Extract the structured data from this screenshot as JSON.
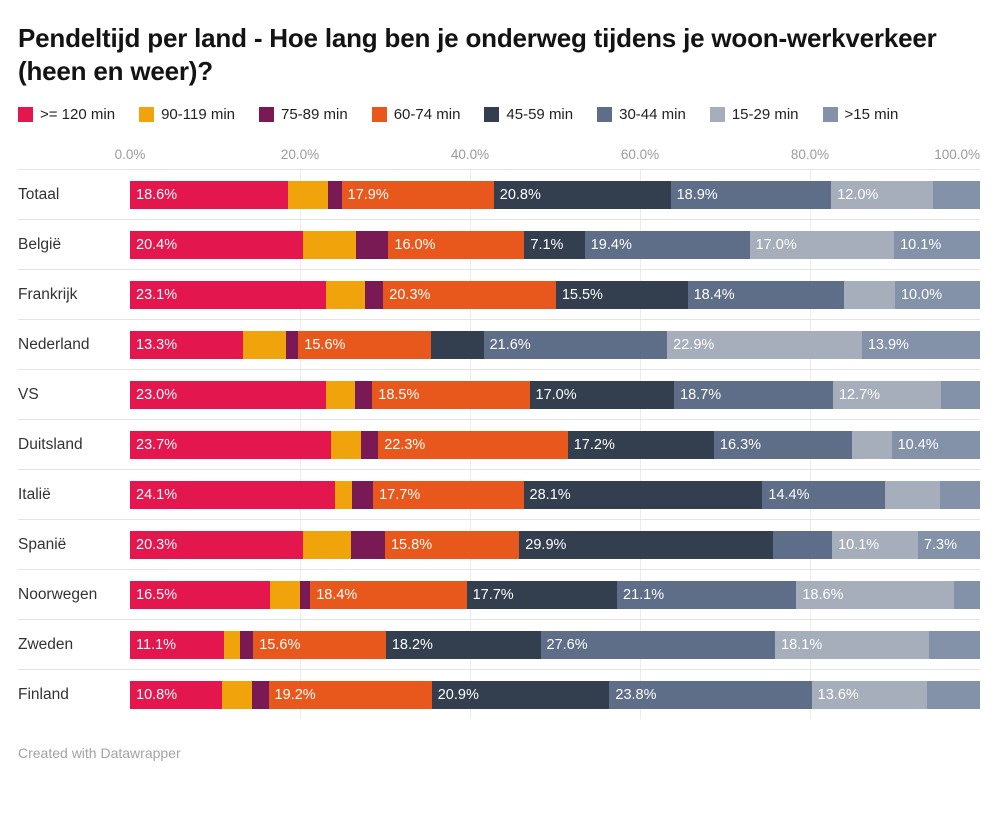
{
  "footer": {
    "attribution": "Created with Datawrapper"
  },
  "chart_data": {
    "type": "bar",
    "stacked": true,
    "orientation": "horizontal",
    "title": "Pendeltijd per land - Hoe lang ben je onderweg tijdens je woon-werkverkeer (heen en weer)?",
    "unit": "%",
    "xlim": [
      0,
      100
    ],
    "x_ticks": [
      "0.0%",
      "20.0%",
      "40.0%",
      "60.0%",
      "80.0%",
      "100.0%"
    ],
    "grid": true,
    "legend_position": "top",
    "label_threshold_pct": 7,
    "categories": [
      "Totaal",
      "België",
      "Frankrijk",
      "Nederland",
      "VS",
      "Duitsland",
      "Italië",
      "Spanië",
      "Noorwegen",
      "Zweden",
      "Finland"
    ],
    "series": [
      {
        "name": ">= 120 min",
        "color": "#e3164e",
        "values": [
          18.6,
          20.4,
          23.1,
          13.3,
          23.0,
          23.7,
          24.1,
          20.3,
          16.5,
          11.1,
          10.8
        ]
      },
      {
        "name": "90-119 min",
        "color": "#f0a30a",
        "values": [
          4.7,
          6.2,
          4.5,
          5.0,
          3.5,
          3.5,
          2.0,
          5.7,
          3.5,
          1.8,
          3.5
        ]
      },
      {
        "name": "75-89 min",
        "color": "#7a1a54",
        "values": [
          1.6,
          3.8,
          2.2,
          1.5,
          2.0,
          2.0,
          2.5,
          4.0,
          1.2,
          1.6,
          2.0
        ]
      },
      {
        "name": "60-74 min",
        "color": "#e8581c",
        "values": [
          17.9,
          16.0,
          20.3,
          15.6,
          18.5,
          22.3,
          17.7,
          15.8,
          18.4,
          15.6,
          19.2
        ]
      },
      {
        "name": "45-59 min",
        "color": "#333e4e",
        "values": [
          20.8,
          7.1,
          15.5,
          6.2,
          17.0,
          17.2,
          28.1,
          29.9,
          17.7,
          18.2,
          20.9
        ]
      },
      {
        "name": "30-44 min",
        "color": "#5e6d88",
        "values": [
          18.9,
          19.4,
          18.4,
          21.6,
          18.7,
          16.3,
          14.4,
          6.9,
          21.1,
          27.6,
          23.8
        ]
      },
      {
        "name": "15-29 min",
        "color": "#a7aebb",
        "values": [
          12.0,
          17.0,
          6.0,
          22.9,
          12.7,
          4.6,
          6.5,
          10.1,
          18.6,
          18.1,
          13.6
        ]
      },
      {
        "name": ">15 min",
        "color": "#8392a9",
        "values": [
          5.5,
          10.1,
          10.0,
          13.9,
          4.6,
          10.4,
          4.7,
          7.3,
          3.0,
          6.0,
          6.2
        ]
      }
    ]
  }
}
